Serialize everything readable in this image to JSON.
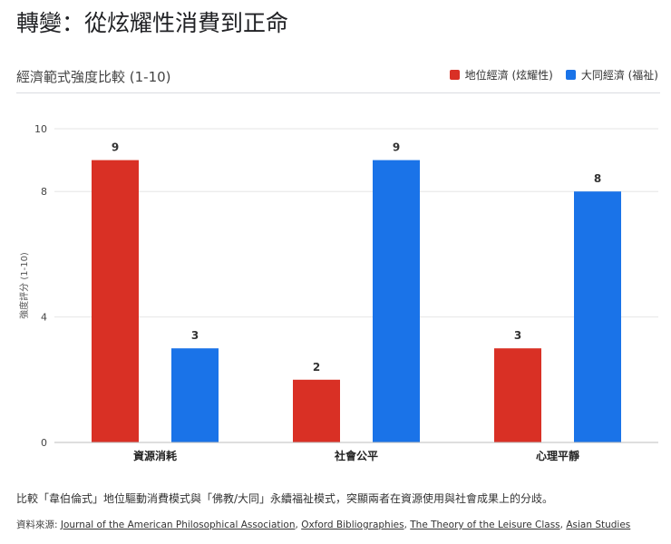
{
  "page": {
    "title": "轉變：從炫耀性消費到正命",
    "description": "比較「韋伯倫式」地位驅動消費模式與「佛教/大同」永續福祉模式，突顯兩者在資源使用與社會成果上的分歧。",
    "sources_label": "資料來源:",
    "sources": [
      "Journal of the American Philosophical Association",
      "Oxford Bibliographies",
      "The Theory of the Leisure Class",
      "Asian Studies"
    ],
    "sources_separator": ", "
  },
  "colors": {
    "status": "#d93025",
    "welfare": "#1a73e8",
    "grid": "#e6e6e6",
    "axis": "#bdbdbd"
  },
  "chart_data": {
    "type": "bar",
    "title": "經濟範式強度比較 (1-10)",
    "xlabel": "",
    "ylabel": "強度評分 (1-10)",
    "categories": [
      "資源消耗",
      "社會公平",
      "心理平靜"
    ],
    "series": [
      {
        "name": "地位經濟 (炫耀性)",
        "values": [
          9,
          2,
          3
        ]
      },
      {
        "name": "大同經濟 (福祉)",
        "values": [
          3,
          9,
          8
        ]
      }
    ],
    "ylim": [
      0,
      10
    ],
    "yticks": [
      0,
      4,
      8,
      10
    ],
    "grid": true,
    "legend_position": "top-right",
    "data_labels": true
  }
}
